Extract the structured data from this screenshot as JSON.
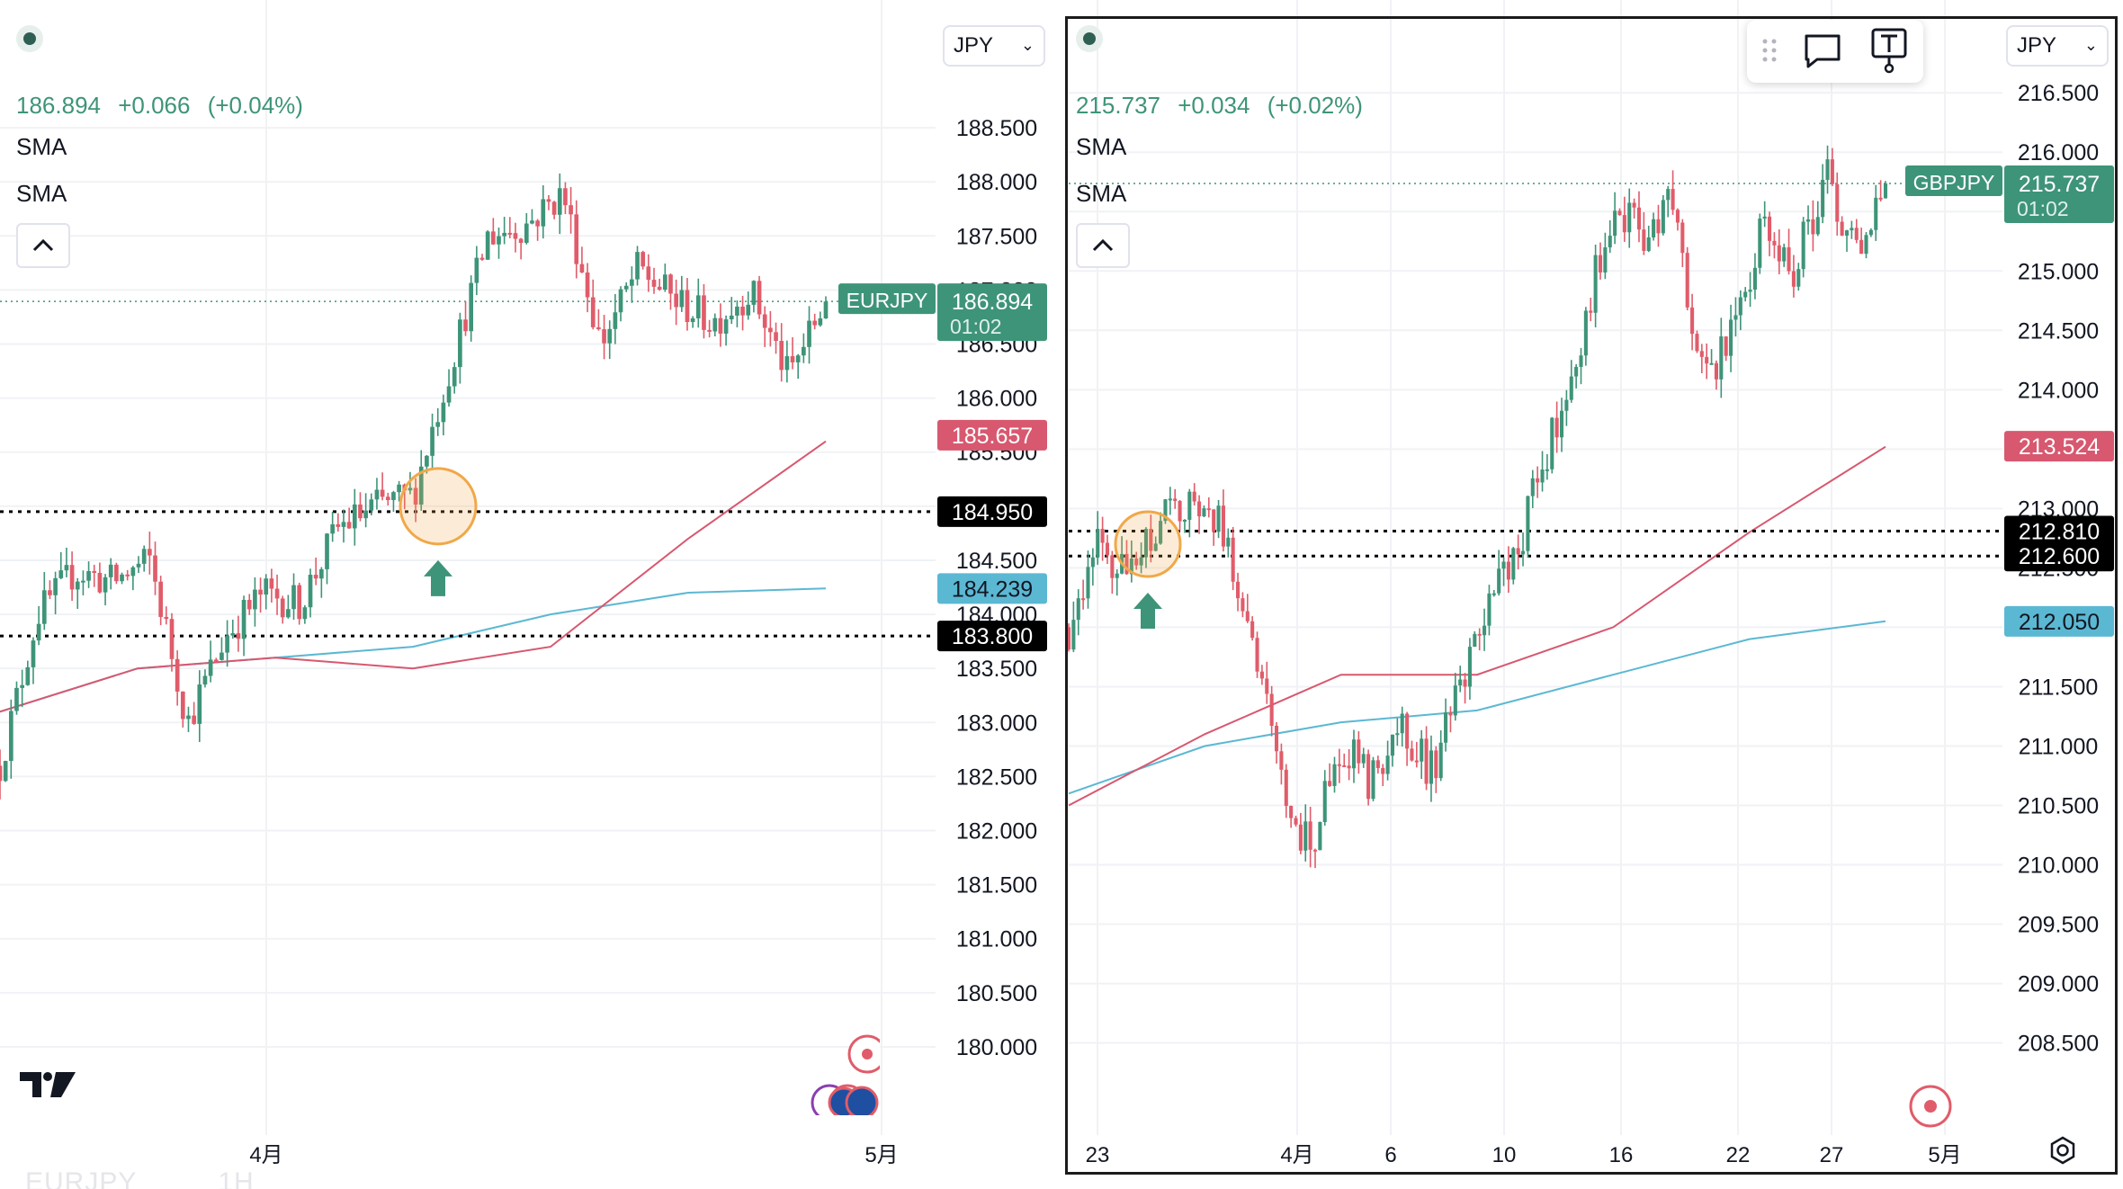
{
  "left": {
    "symbol": "EURJPY",
    "timeframe": "1H",
    "currency": "JPY",
    "price": "186.894",
    "change": "+0.066",
    "change_pct": "(+0.04%)",
    "sma1_label": "SMA",
    "sma2_label": "SMA",
    "countdown": "01:02",
    "sma_fast_value": "185.657",
    "sma_slow_value": "184.239",
    "level_upper": "184.950",
    "level_lower": "183.800",
    "y_ticks": [
      "188.500",
      "188.000",
      "187.500",
      "187.000",
      "186.500",
      "186.000",
      "185.500",
      "185.000",
      "184.500",
      "184.000",
      "183.500",
      "183.000",
      "182.500",
      "182.000",
      "181.500",
      "181.000",
      "180.500",
      "180.000"
    ],
    "x_ticks": [
      "4月",
      "5月"
    ]
  },
  "right": {
    "symbol": "GBPJPY",
    "currency": "JPY",
    "price": "215.737",
    "change": "+0.034",
    "change_pct": "(+0.02%)",
    "sma1_label": "SMA",
    "sma2_label": "SMA",
    "countdown": "01:02",
    "sma_fast_value": "213.524",
    "sma_slow_value": "212.050",
    "level_upper": "212.810",
    "level_lower": "212.600",
    "y_ticks": [
      "216.500",
      "216.000",
      "215.500",
      "215.000",
      "214.500",
      "214.000",
      "213.500",
      "213.000",
      "212.500",
      "212.000",
      "211.500",
      "211.000",
      "210.500",
      "210.000",
      "209.500",
      "209.000",
      "208.500"
    ],
    "x_ticks": [
      "23",
      "4月",
      "6",
      "10",
      "16",
      "22",
      "27",
      "5月"
    ]
  },
  "colors": {
    "up": "#3e9479",
    "down": "#e05c6a",
    "sma_fast": "#d7586f",
    "sma_slow": "#5bb8d3",
    "highlight": "#f0a84a",
    "grid": "#f0f2f5",
    "axis_text": "#131722"
  },
  "icons": {
    "collapse": "chevron-up-icon",
    "currency_dropdown": "chevron-down-icon",
    "logo": "tradingview-logo",
    "settings": "gear-icon",
    "toolbar": [
      "drag-handle-icon",
      "comment-icon",
      "text-tool-icon"
    ]
  },
  "chart_data": [
    {
      "type": "candlestick",
      "title": "EURJPY 1H",
      "xlabel": "",
      "ylabel": "JPY",
      "ylim": [
        179.8,
        188.9
      ],
      "x_ticks": [
        "4月",
        "5月"
      ],
      "waypoints": [
        182.6,
        184.0,
        184.4,
        184.3,
        184.5,
        183.0,
        183.8,
        184.2,
        184.1,
        184.8,
        185.0,
        185.1,
        186.3,
        187.5,
        187.6,
        187.9,
        186.5,
        187.2,
        186.9,
        186.7,
        187.0,
        186.2,
        186.9
      ],
      "last_price": 186.894,
      "sma_fast": {
        "name": "SMA",
        "last": 185.657,
        "points": [
          183.1,
          183.5,
          183.6,
          183.5,
          183.7,
          184.7,
          185.6
        ]
      },
      "sma_slow": {
        "name": "SMA",
        "last": 184.239,
        "points": [
          183.1,
          183.5,
          183.6,
          183.7,
          184.0,
          184.2,
          184.24
        ]
      },
      "levels": [
        184.95,
        183.8
      ],
      "signal": {
        "type": "buy-arrow",
        "price": 185.0
      }
    },
    {
      "type": "candlestick",
      "title": "GBPJPY",
      "xlabel": "",
      "ylabel": "JPY",
      "ylim": [
        208.3,
        216.6
      ],
      "x_ticks": [
        "23",
        "4月",
        "6",
        "10",
        "16",
        "22",
        "27",
        "5月"
      ],
      "waypoints": [
        212.0,
        212.7,
        212.4,
        212.9,
        213.0,
        212.9,
        212.0,
        210.7,
        210.1,
        211.0,
        210.7,
        211.2,
        210.8,
        211.5,
        212.2,
        212.8,
        213.6,
        214.5,
        215.6,
        215.3,
        215.6,
        214.0,
        214.6,
        215.4,
        215.0,
        215.8,
        215.2,
        215.74
      ],
      "last_price": 215.737,
      "sma_fast": {
        "name": "SMA",
        "last": 213.524,
        "points": [
          210.5,
          211.1,
          211.6,
          211.6,
          212.0,
          212.8,
          213.52
        ]
      },
      "sma_slow": {
        "name": "SMA",
        "last": 212.05,
        "points": [
          210.6,
          211.0,
          211.2,
          211.3,
          211.6,
          211.9,
          212.05
        ]
      },
      "levels": [
        212.81,
        212.6
      ],
      "signal": {
        "type": "buy-arrow",
        "price": 212.7
      }
    }
  ]
}
